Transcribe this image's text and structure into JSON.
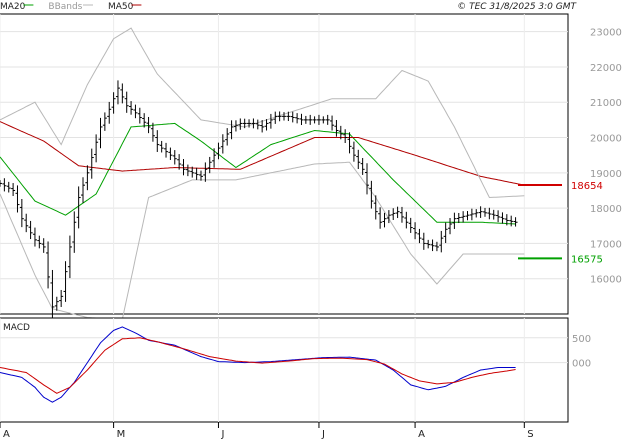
{
  "header": {
    "legend": [
      {
        "label": "MA20",
        "color": "#00a000"
      },
      {
        "label": "BBands",
        "color": "#b8b8b8"
      },
      {
        "label": "MA50",
        "color": "#b00000"
      }
    ],
    "copyright": "© TEC 31/8/2025 3:0 GMT"
  },
  "chart_data": [
    {
      "type": "ohlc-bar",
      "title": "",
      "months": [
        "A",
        "M",
        "J",
        "J",
        "A",
        "S"
      ],
      "month_day_index": [
        0,
        26,
        50,
        73,
        95,
        120
      ],
      "ylim": [
        15000,
        23500
      ],
      "yticks": [
        16000,
        17000,
        18000,
        19000,
        20000,
        21000,
        22000,
        23000
      ],
      "grid": true,
      "legend_position": "top-left",
      "levels": [
        {
          "label": "18654",
          "value": 18654,
          "color": "#d00000"
        },
        {
          "label": "16575",
          "value": 16575,
          "color": "#00a000"
        }
      ],
      "series": [
        {
          "name": "MA20",
          "color": "#00a000",
          "knots": [
            [
              0,
              19450
            ],
            [
              8,
              18200
            ],
            [
              15,
              17800
            ],
            [
              22,
              18400
            ],
            [
              30,
              20300
            ],
            [
              40,
              20400
            ],
            [
              46,
              19900
            ],
            [
              54,
              19150
            ],
            [
              62,
              19800
            ],
            [
              72,
              20200
            ],
            [
              80,
              20100
            ],
            [
              90,
              18800
            ],
            [
              100,
              17600
            ],
            [
              110,
              17600
            ],
            [
              118,
              17550
            ]
          ]
        },
        {
          "name": "MA50",
          "color": "#b00000",
          "knots": [
            [
              0,
              20450
            ],
            [
              10,
              19900
            ],
            [
              18,
              19200
            ],
            [
              28,
              19050
            ],
            [
              40,
              19150
            ],
            [
              55,
              19100
            ],
            [
              72,
              20000
            ],
            [
              82,
              20000
            ],
            [
              95,
              19500
            ],
            [
              110,
              18900
            ],
            [
              120,
              18650
            ]
          ]
        },
        {
          "name": "BB upper",
          "color": "#b8b8b8",
          "knots": [
            [
              0,
              20500
            ],
            [
              8,
              21000
            ],
            [
              14,
              19800
            ],
            [
              20,
              21500
            ],
            [
              26,
              22800
            ],
            [
              30,
              23100
            ],
            [
              36,
              21800
            ],
            [
              46,
              20500
            ],
            [
              56,
              20300
            ],
            [
              66,
              20700
            ],
            [
              76,
              21100
            ],
            [
              86,
              21100
            ],
            [
              92,
              21900
            ],
            [
              98,
              21600
            ],
            [
              104,
              20300
            ],
            [
              112,
              18300
            ],
            [
              120,
              18350
            ]
          ]
        },
        {
          "name": "BB lower",
          "color": "#b8b8b8",
          "knots": [
            [
              0,
              18400
            ],
            [
              8,
              16100
            ],
            [
              12,
              15150
            ],
            [
              20,
              14900
            ],
            [
              28,
              14850
            ],
            [
              34,
              18300
            ],
            [
              44,
              18800
            ],
            [
              54,
              18800
            ],
            [
              62,
              19000
            ],
            [
              72,
              19250
            ],
            [
              80,
              19300
            ],
            [
              86,
              18300
            ],
            [
              94,
              16700
            ],
            [
              100,
              15850
            ],
            [
              106,
              16700
            ],
            [
              120,
              16700
            ]
          ]
        }
      ],
      "price_knots": [
        [
          0,
          18700
        ],
        [
          3,
          18500
        ],
        [
          5,
          17700
        ],
        [
          8,
          17100
        ],
        [
          10,
          16900
        ],
        [
          12,
          15200
        ],
        [
          14,
          15500
        ],
        [
          16,
          16900
        ],
        [
          18,
          18300
        ],
        [
          20,
          19000
        ],
        [
          23,
          20300
        ],
        [
          25,
          20800
        ],
        [
          27,
          21400
        ],
        [
          29,
          20900
        ],
        [
          31,
          20700
        ],
        [
          34,
          20300
        ],
        [
          36,
          19800
        ],
        [
          38,
          19600
        ],
        [
          40,
          19400
        ],
        [
          42,
          19100
        ],
        [
          44,
          19000
        ],
        [
          46,
          18900
        ],
        [
          48,
          19300
        ],
        [
          50,
          19700
        ],
        [
          53,
          20300
        ],
        [
          55,
          20400
        ],
        [
          58,
          20400
        ],
        [
          60,
          20300
        ],
        [
          63,
          20600
        ],
        [
          66,
          20600
        ],
        [
          69,
          20500
        ],
        [
          72,
          20500
        ],
        [
          75,
          20500
        ],
        [
          77,
          20200
        ],
        [
          79,
          20000
        ],
        [
          81,
          19500
        ],
        [
          83,
          19100
        ],
        [
          85,
          18200
        ],
        [
          87,
          17600
        ],
        [
          89,
          17800
        ],
        [
          91,
          17900
        ],
        [
          93,
          17600
        ],
        [
          95,
          17300
        ],
        [
          97,
          17000
        ],
        [
          100,
          16900
        ],
        [
          102,
          17400
        ],
        [
          104,
          17700
        ],
        [
          107,
          17800
        ],
        [
          110,
          17900
        ],
        [
          113,
          17800
        ],
        [
          116,
          17650
        ],
        [
          118,
          17600
        ]
      ]
    },
    {
      "type": "line",
      "title": "MACD",
      "ylim": [
        -1200,
        900
      ],
      "yticks": [
        0,
        500
      ],
      "ytick_labels": [
        "000",
        "500"
      ],
      "grid": true,
      "series": [
        {
          "name": "",
          "color": "#0000cc",
          "knots": [
            [
              0,
              -200
            ],
            [
              5,
              -300
            ],
            [
              8,
              -500
            ],
            [
              10,
              -700
            ],
            [
              12,
              -800
            ],
            [
              14,
              -700
            ],
            [
              17,
              -400
            ],
            [
              20,
              0
            ],
            [
              23,
              400
            ],
            [
              26,
              650
            ],
            [
              28,
              720
            ],
            [
              31,
              600
            ],
            [
              34,
              450
            ],
            [
              40,
              350
            ],
            [
              46,
              120
            ],
            [
              50,
              20
            ],
            [
              56,
              0
            ],
            [
              62,
              20
            ],
            [
              68,
              60
            ],
            [
              74,
              100
            ],
            [
              80,
              110
            ],
            [
              86,
              50
            ],
            [
              90,
              -150
            ],
            [
              94,
              -450
            ],
            [
              98,
              -550
            ],
            [
              102,
              -480
            ],
            [
              106,
              -300
            ],
            [
              110,
              -150
            ],
            [
              114,
              -100
            ],
            [
              118,
              -100
            ]
          ]
        },
        {
          "name": "",
          "color": "#cc0000",
          "knots": [
            [
              0,
              -100
            ],
            [
              6,
              -200
            ],
            [
              10,
              -450
            ],
            [
              13,
              -620
            ],
            [
              16,
              -500
            ],
            [
              20,
              -150
            ],
            [
              24,
              250
            ],
            [
              28,
              480
            ],
            [
              32,
              500
            ],
            [
              36,
              420
            ],
            [
              42,
              280
            ],
            [
              48,
              120
            ],
            [
              54,
              30
            ],
            [
              60,
              -10
            ],
            [
              66,
              30
            ],
            [
              72,
              80
            ],
            [
              78,
              90
            ],
            [
              84,
              60
            ],
            [
              88,
              -30
            ],
            [
              92,
              -230
            ],
            [
              96,
              -370
            ],
            [
              100,
              -430
            ],
            [
              104,
              -400
            ],
            [
              108,
              -300
            ],
            [
              112,
              -220
            ],
            [
              116,
              -170
            ],
            [
              118,
              -140
            ]
          ]
        }
      ]
    }
  ]
}
